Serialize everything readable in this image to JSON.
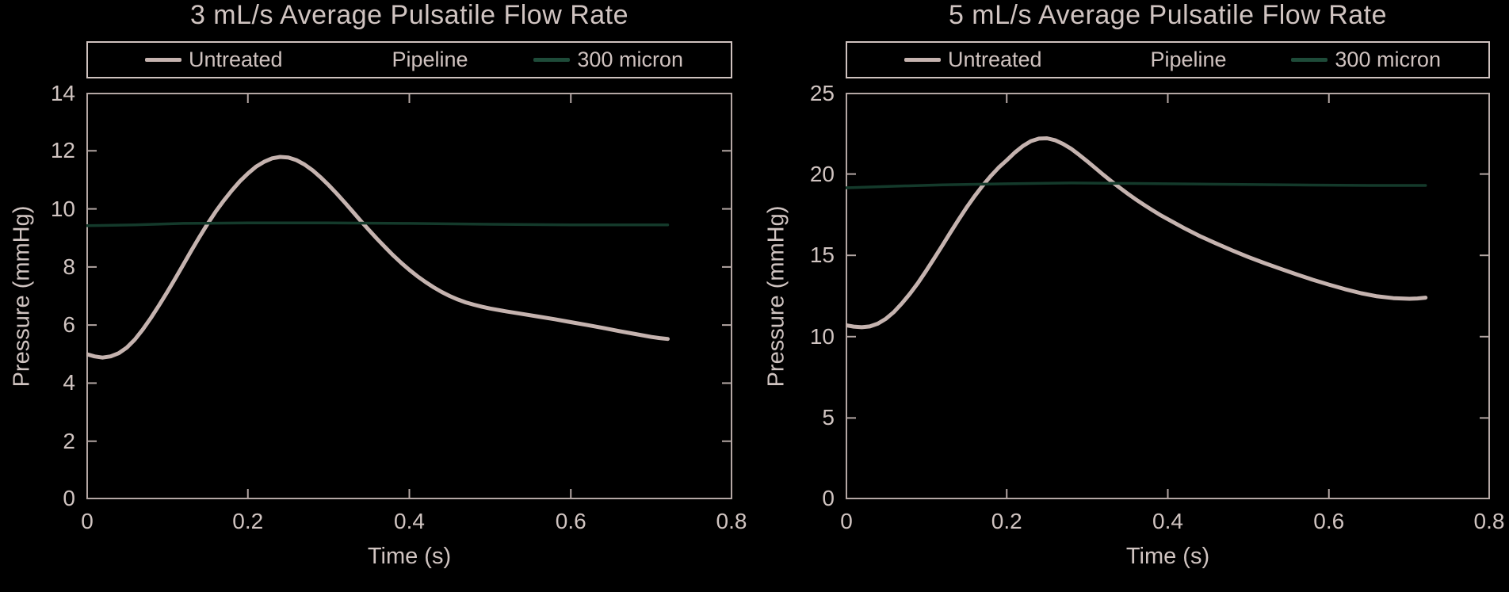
{
  "figure": {
    "background": "#000000",
    "text_color": "#d0c4c1",
    "axis_color": "#b4a7a4"
  },
  "chart_data": [
    {
      "type": "line",
      "title": "3 mL/s Average Pulsatile Flow Rate",
      "xlabel": "Time (s)",
      "ylabel": "Pressure (mmHg)",
      "xlim": [
        0,
        0.8
      ],
      "ylim": [
        0,
        14
      ],
      "xticks": [
        "0",
        "0.2",
        "0.4",
        "0.6",
        "0.8"
      ],
      "yticks": [
        "0",
        "2",
        "4",
        "6",
        "8",
        "10",
        "12",
        "14"
      ],
      "grid": false,
      "legend_position": "top",
      "legend": [
        {
          "label": "Untreated",
          "color": "#c5b3af"
        },
        {
          "label": "Pipeline",
          "color": "#000000"
        },
        {
          "label": "300 micron",
          "color": "#1e4b39"
        }
      ],
      "series": [
        {
          "name": "Untreated",
          "color": "#c5b3af",
          "line_width": 5,
          "points": [
            [
              0,
              5.0
            ],
            [
              0.01,
              4.92
            ],
            [
              0.02,
              4.88
            ],
            [
              0.03,
              4.92
            ],
            [
              0.04,
              5.03
            ],
            [
              0.05,
              5.22
            ],
            [
              0.06,
              5.5
            ],
            [
              0.07,
              5.85
            ],
            [
              0.08,
              6.25
            ],
            [
              0.09,
              6.68
            ],
            [
              0.1,
              7.13
            ],
            [
              0.11,
              7.6
            ],
            [
              0.12,
              8.08
            ],
            [
              0.13,
              8.56
            ],
            [
              0.14,
              9.03
            ],
            [
              0.15,
              9.48
            ],
            [
              0.16,
              9.9
            ],
            [
              0.17,
              10.28
            ],
            [
              0.18,
              10.63
            ],
            [
              0.19,
              10.95
            ],
            [
              0.2,
              11.22
            ],
            [
              0.21,
              11.45
            ],
            [
              0.22,
              11.62
            ],
            [
              0.23,
              11.74
            ],
            [
              0.24,
              11.79
            ],
            [
              0.25,
              11.77
            ],
            [
              0.26,
              11.68
            ],
            [
              0.27,
              11.53
            ],
            [
              0.28,
              11.33
            ],
            [
              0.29,
              11.09
            ],
            [
              0.3,
              10.82
            ],
            [
              0.31,
              10.53
            ],
            [
              0.32,
              10.22
            ],
            [
              0.33,
              9.9
            ],
            [
              0.34,
              9.58
            ],
            [
              0.35,
              9.27
            ],
            [
              0.36,
              8.97
            ],
            [
              0.37,
              8.68
            ],
            [
              0.38,
              8.4
            ],
            [
              0.39,
              8.14
            ],
            [
              0.4,
              7.9
            ],
            [
              0.41,
              7.68
            ],
            [
              0.42,
              7.48
            ],
            [
              0.43,
              7.3
            ],
            [
              0.44,
              7.14
            ],
            [
              0.45,
              7.0
            ],
            [
              0.46,
              6.88
            ],
            [
              0.47,
              6.78
            ],
            [
              0.48,
              6.7
            ],
            [
              0.49,
              6.63
            ],
            [
              0.5,
              6.57
            ],
            [
              0.52,
              6.47
            ],
            [
              0.54,
              6.38
            ],
            [
              0.56,
              6.29
            ],
            [
              0.58,
              6.2
            ],
            [
              0.6,
              6.1
            ],
            [
              0.62,
              6.0
            ],
            [
              0.64,
              5.9
            ],
            [
              0.66,
              5.79
            ],
            [
              0.68,
              5.69
            ],
            [
              0.7,
              5.59
            ],
            [
              0.71,
              5.55
            ],
            [
              0.72,
              5.52
            ]
          ]
        },
        {
          "name": "Pipeline",
          "color": "#000000",
          "line_width": 3.5,
          "points": []
        },
        {
          "name": "300 micron",
          "color": "#143a2b",
          "line_width": 3.5,
          "points": [
            [
              0,
              9.42
            ],
            [
              0.06,
              9.45
            ],
            [
              0.12,
              9.5
            ],
            [
              0.2,
              9.52
            ],
            [
              0.3,
              9.52
            ],
            [
              0.4,
              9.5
            ],
            [
              0.5,
              9.47
            ],
            [
              0.6,
              9.45
            ],
            [
              0.72,
              9.45
            ]
          ]
        }
      ]
    },
    {
      "type": "line",
      "title": "5 mL/s Average Pulsatile Flow Rate",
      "xlabel": "Time (s)",
      "ylabel": "Pressure (mmHg)",
      "xlim": [
        0,
        0.8
      ],
      "ylim": [
        0,
        25
      ],
      "xticks": [
        "0",
        "0.2",
        "0.4",
        "0.6",
        "0.8"
      ],
      "yticks": [
        "0",
        "5",
        "10",
        "15",
        "20",
        "25"
      ],
      "grid": false,
      "legend_position": "top",
      "legend": [
        {
          "label": "Untreated",
          "color": "#c5b3af"
        },
        {
          "label": "Pipeline",
          "color": "#000000"
        },
        {
          "label": "300 micron",
          "color": "#1e4b39"
        }
      ],
      "series": [
        {
          "name": "Untreated",
          "color": "#c5b3af",
          "line_width": 5,
          "points": [
            [
              0,
              10.7
            ],
            [
              0.01,
              10.62
            ],
            [
              0.02,
              10.58
            ],
            [
              0.03,
              10.63
            ],
            [
              0.04,
              10.8
            ],
            [
              0.05,
              11.1
            ],
            [
              0.06,
              11.52
            ],
            [
              0.07,
              12.05
            ],
            [
              0.08,
              12.65
            ],
            [
              0.09,
              13.32
            ],
            [
              0.1,
              14.05
            ],
            [
              0.11,
              14.82
            ],
            [
              0.12,
              15.6
            ],
            [
              0.13,
              16.4
            ],
            [
              0.14,
              17.18
            ],
            [
              0.15,
              17.93
            ],
            [
              0.16,
              18.63
            ],
            [
              0.17,
              19.28
            ],
            [
              0.18,
              19.87
            ],
            [
              0.19,
              20.4
            ],
            [
              0.2,
              20.85
            ],
            [
              0.21,
              21.32
            ],
            [
              0.22,
              21.72
            ],
            [
              0.23,
              22.02
            ],
            [
              0.24,
              22.18
            ],
            [
              0.25,
              22.2
            ],
            [
              0.26,
              22.08
            ],
            [
              0.27,
              21.85
            ],
            [
              0.28,
              21.55
            ],
            [
              0.29,
              21.18
            ],
            [
              0.3,
              20.78
            ],
            [
              0.31,
              20.37
            ],
            [
              0.32,
              19.95
            ],
            [
              0.33,
              19.55
            ],
            [
              0.34,
              19.17
            ],
            [
              0.35,
              18.8
            ],
            [
              0.36,
              18.45
            ],
            [
              0.37,
              18.12
            ],
            [
              0.38,
              17.8
            ],
            [
              0.39,
              17.5
            ],
            [
              0.4,
              17.22
            ],
            [
              0.42,
              16.68
            ],
            [
              0.44,
              16.18
            ],
            [
              0.46,
              15.73
            ],
            [
              0.48,
              15.3
            ],
            [
              0.5,
              14.9
            ],
            [
              0.52,
              14.52
            ],
            [
              0.54,
              14.17
            ],
            [
              0.56,
              13.83
            ],
            [
              0.58,
              13.5
            ],
            [
              0.6,
              13.2
            ],
            [
              0.62,
              12.92
            ],
            [
              0.64,
              12.67
            ],
            [
              0.66,
              12.48
            ],
            [
              0.68,
              12.37
            ],
            [
              0.7,
              12.33
            ],
            [
              0.71,
              12.35
            ],
            [
              0.72,
              12.4
            ]
          ]
        },
        {
          "name": "Pipeline",
          "color": "#000000",
          "line_width": 3.5,
          "points": []
        },
        {
          "name": "300 micron",
          "color": "#143a2b",
          "line_width": 3.5,
          "points": [
            [
              0,
              19.15
            ],
            [
              0.06,
              19.25
            ],
            [
              0.12,
              19.33
            ],
            [
              0.2,
              19.4
            ],
            [
              0.28,
              19.45
            ],
            [
              0.36,
              19.42
            ],
            [
              0.44,
              19.38
            ],
            [
              0.55,
              19.33
            ],
            [
              0.65,
              19.3
            ],
            [
              0.72,
              19.3
            ]
          ]
        }
      ]
    }
  ]
}
